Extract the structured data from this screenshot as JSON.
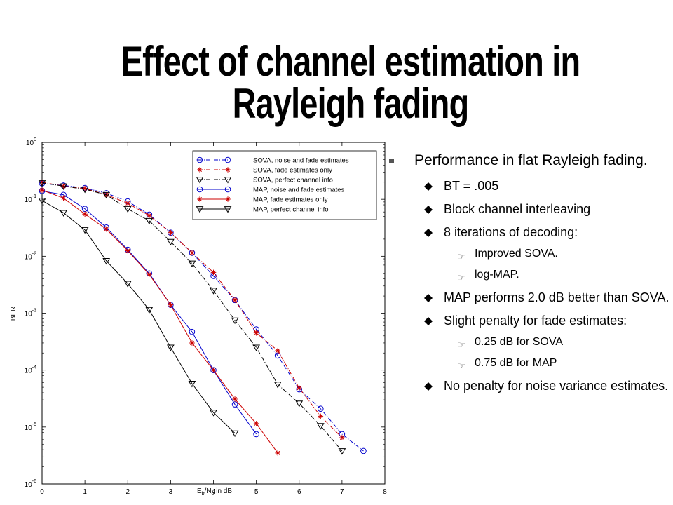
{
  "slide": {
    "title_line1": "Effect of channel estimation in",
    "title_line2": "Rayleigh fading"
  },
  "bullets": {
    "main": "Performance in flat Rayleigh fading.",
    "bt": "BT = .005",
    "interleave": "Block channel interleaving",
    "iterations": "8 iterations of decoding:",
    "improved_sova": "Improved SOVA.",
    "log_map": "log-MAP.",
    "map_better": "MAP performs 2.0 dB better than SOVA.",
    "penalty": "Slight penalty for fade estimates:",
    "penalty_sova": "0.25 dB for SOVA",
    "penalty_map": "0.75 dB for MAP",
    "no_penalty": "No penalty for noise variance estimates."
  },
  "chart_data": {
    "type": "line",
    "xlabel": "E_b/N_o in dB",
    "xlabel_main": "E",
    "xlabel_sub1": "b",
    "xlabel_mid": "/N",
    "xlabel_sub2": "o",
    "xlabel_tail": " in dB",
    "ylabel": "BER",
    "xlim": [
      0,
      8
    ],
    "ylim_log10": [
      -6,
      0
    ],
    "yscale": "log",
    "xticks": [
      0,
      1,
      2,
      3,
      4,
      5,
      6,
      7,
      8
    ],
    "yticks_exp": [
      0,
      -1,
      -2,
      -3,
      -4,
      -5,
      -6
    ],
    "legend_position": "top-right",
    "series": [
      {
        "name": "SOVA, noise and fade estimates",
        "color": "#0000cc",
        "dash": "6,2,1,2",
        "marker": "circle",
        "x": [
          0,
          0.5,
          1,
          1.5,
          2,
          2.5,
          3,
          3.5,
          4,
          4.5,
          5,
          5.5,
          6,
          6.5,
          7,
          7.5
        ],
        "y": [
          0.19,
          0.175,
          0.158,
          0.128,
          0.092,
          0.054,
          0.026,
          0.0115,
          0.0045,
          0.0017,
          0.00052,
          0.00018,
          4.6e-05,
          2.1e-05,
          7.5e-06,
          3.8e-06
        ]
      },
      {
        "name": "SOVA, fade estimates only",
        "color": "#cc0000",
        "dash": "6,2,1,2",
        "marker": "star",
        "x": [
          0,
          0.5,
          1,
          1.5,
          2,
          2.5,
          3,
          3.5,
          4,
          4.5,
          5,
          5.5,
          6,
          6.5,
          7
        ],
        "y": [
          0.2,
          0.17,
          0.155,
          0.12,
          0.085,
          0.052,
          0.026,
          0.0115,
          0.0052,
          0.0017,
          0.00045,
          0.00022,
          4.85e-05,
          1.55e-05,
          6.5e-06
        ]
      },
      {
        "name": "SOVA, perfect channel info",
        "color": "#000000",
        "dash": "6,2,1,2",
        "marker": "triangle",
        "x": [
          0,
          0.5,
          1,
          1.5,
          2,
          2.5,
          3,
          3.5,
          4,
          4.5,
          5,
          5.5,
          6,
          6.5,
          7
        ],
        "y": [
          0.195,
          0.17,
          0.15,
          0.12,
          0.068,
          0.042,
          0.018,
          0.0075,
          0.0025,
          0.00075,
          0.00025,
          5.6e-05,
          2.6e-05,
          1.05e-05,
          3.8e-06
        ]
      },
      {
        "name": "MAP, noise and fade estimates",
        "color": "#0000cc",
        "dash": "",
        "marker": "circle",
        "x": [
          0,
          0.5,
          1,
          1.5,
          2,
          2.5,
          3,
          3.5,
          4,
          4.5,
          5
        ],
        "y": [
          0.14,
          0.12,
          0.068,
          0.032,
          0.013,
          0.005,
          0.0014,
          0.00047,
          0.0001,
          2.5e-05,
          7.5e-06
        ]
      },
      {
        "name": "MAP, fade estimates only",
        "color": "#cc0000",
        "dash": "",
        "marker": "star",
        "x": [
          0,
          0.5,
          1,
          1.5,
          2,
          2.5,
          3,
          3.5,
          4,
          4.5,
          5,
          5.5
        ],
        "y": [
          0.145,
          0.105,
          0.055,
          0.03,
          0.0125,
          0.0048,
          0.0014,
          0.0003,
          0.0001,
          3.1e-05,
          1.15e-05,
          3.5e-06
        ]
      },
      {
        "name": "MAP, perfect channel info",
        "color": "#000000",
        "dash": "",
        "marker": "triangle",
        "x": [
          0,
          0.5,
          1,
          1.5,
          2,
          2.5,
          3,
          3.5,
          4,
          4.5
        ],
        "y": [
          0.095,
          0.058,
          0.029,
          0.0083,
          0.0033,
          0.00115,
          0.00025,
          5.8e-05,
          1.8e-05,
          7.8e-06
        ]
      }
    ]
  }
}
